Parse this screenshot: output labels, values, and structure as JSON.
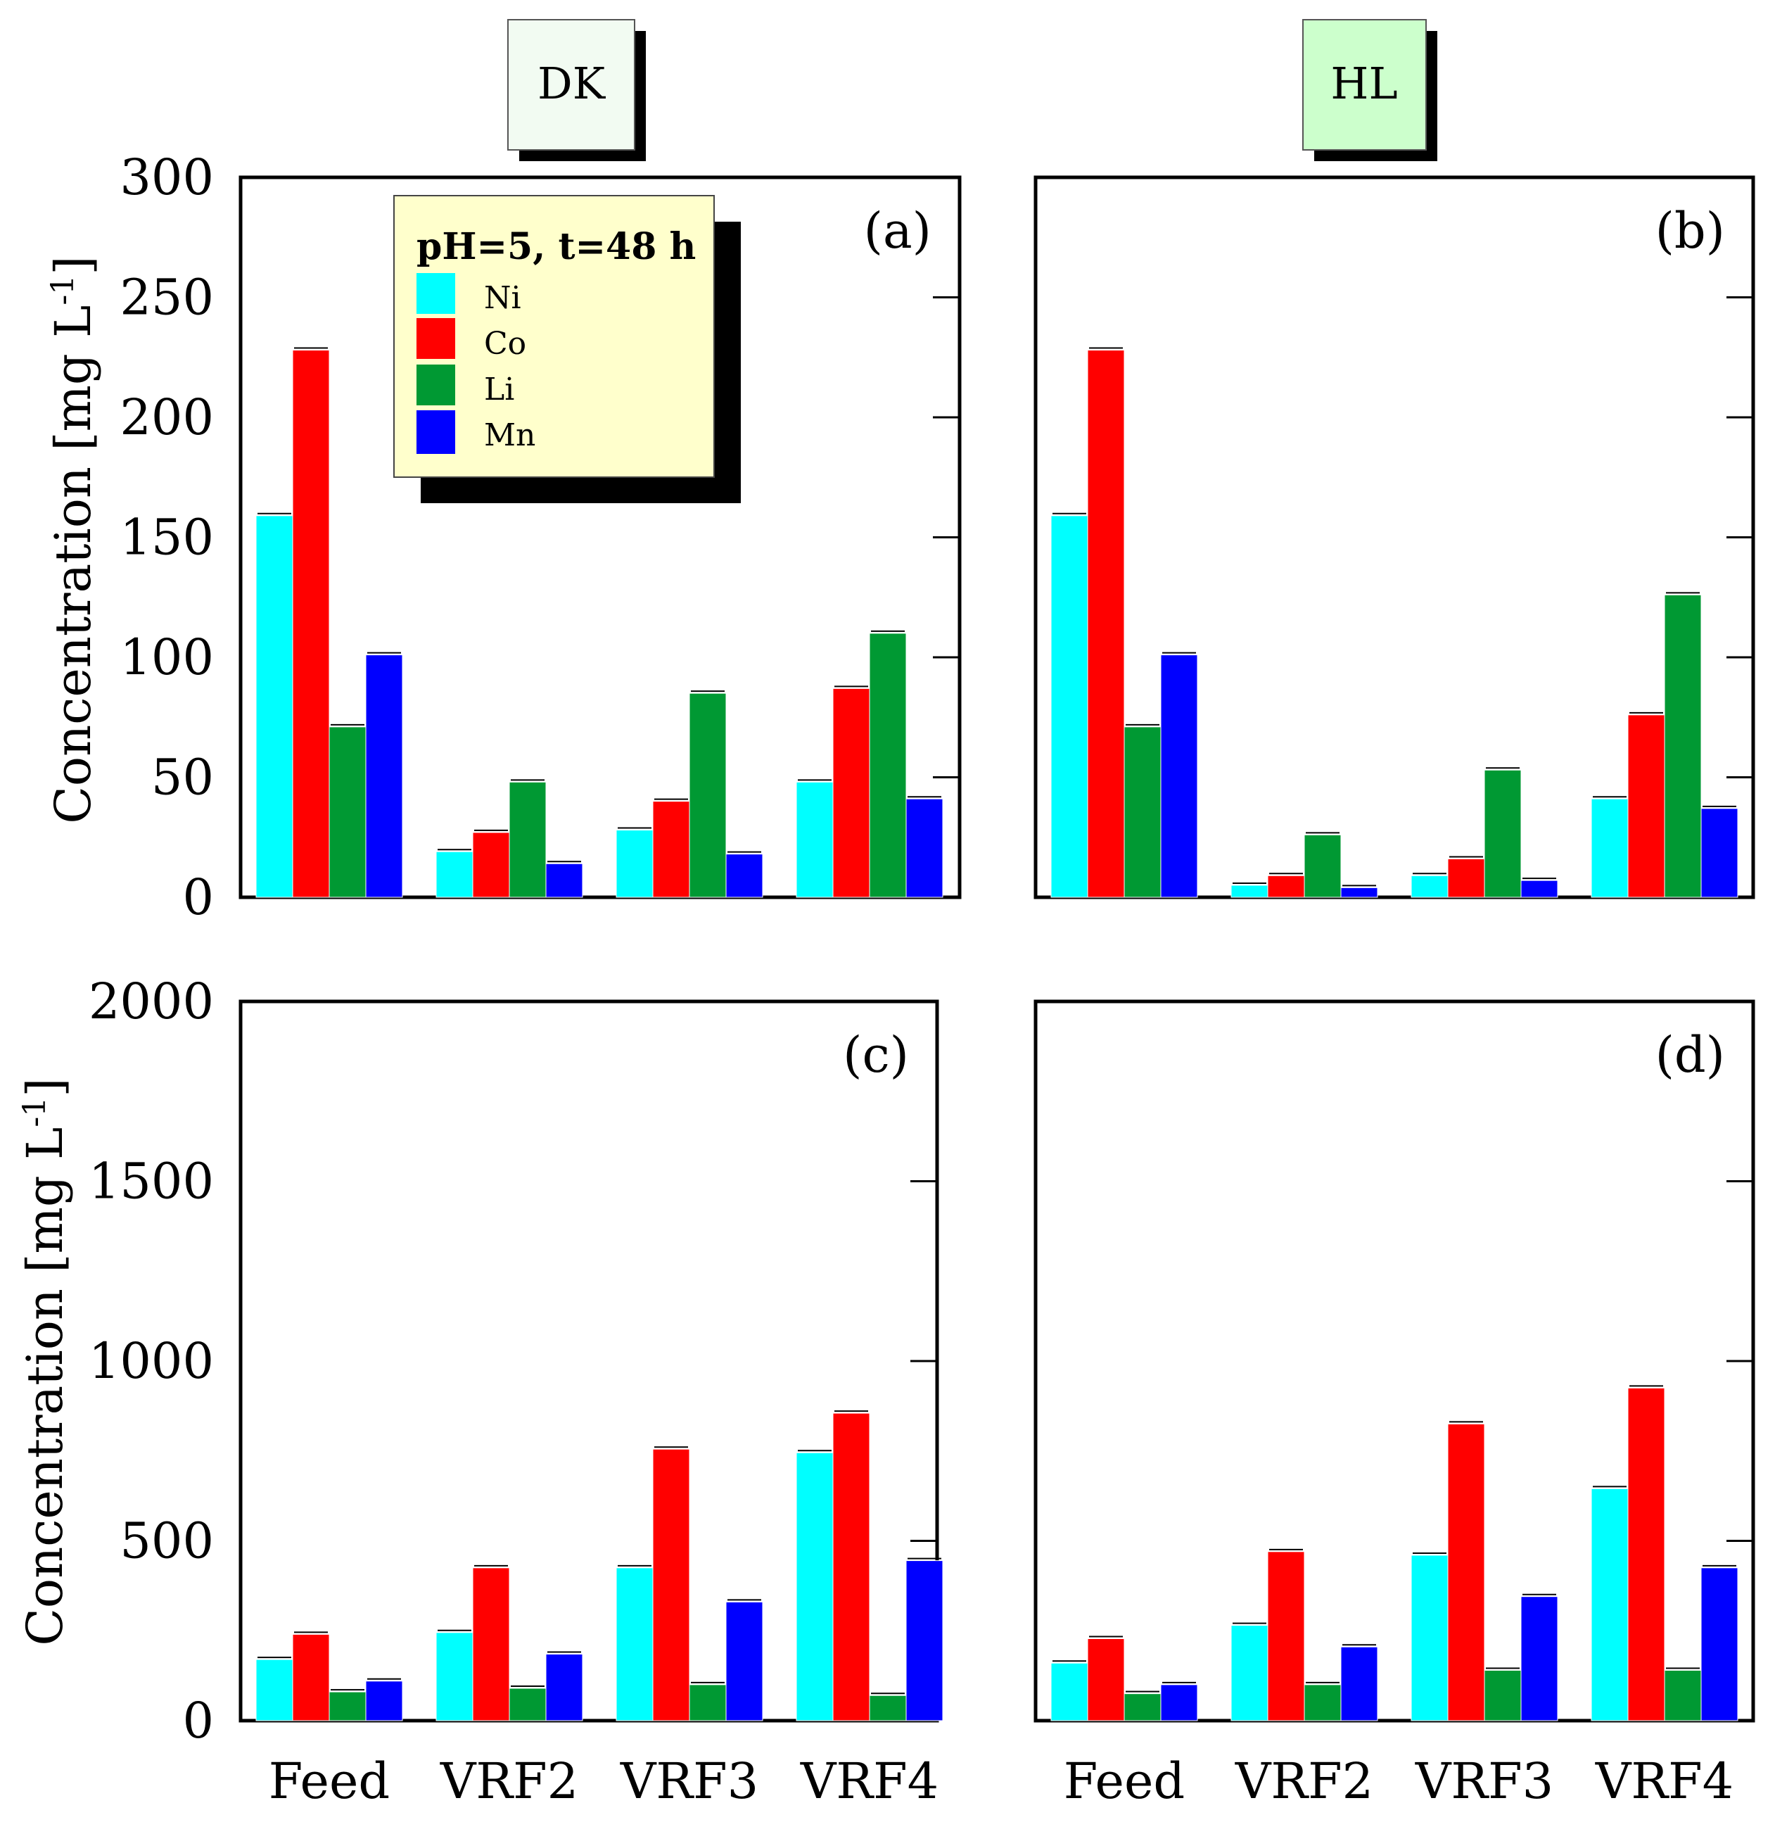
{
  "figure": {
    "column_titles": [
      "DK",
      "HL"
    ],
    "colors": {
      "Ni": "#00ffff",
      "Co": "#ff0000",
      "Li": "#009933",
      "Mn": "#0000ff",
      "legend_bg": "#ffffcc",
      "dk_box_bg": "#f2fbf2",
      "hl_box_bg": "#ccffcc"
    },
    "legend": {
      "title": "pH=5, t=48 h",
      "entries": [
        "Ni",
        "Co",
        "Li",
        "Mn"
      ]
    },
    "ylabel_top": "Concentration [mg L",
    "ylabel_bottom": "Concentration [mg L",
    "ylabel_sup": "-1",
    "ylabel_close": "]"
  },
  "chart_data": [
    {
      "type": "bar",
      "panel": "(a)",
      "column": "DK",
      "categories": [
        "Feed",
        "VRF2",
        "VRF3",
        "VRF4"
      ],
      "series": [
        {
          "name": "Ni",
          "values": [
            159,
            19,
            28,
            48
          ]
        },
        {
          "name": "Co",
          "values": [
            228,
            27,
            40,
            87
          ]
        },
        {
          "name": "Li",
          "values": [
            71,
            48,
            85,
            110
          ]
        },
        {
          "name": "Mn",
          "values": [
            101,
            14,
            18,
            41
          ]
        }
      ],
      "ylim": [
        0,
        300
      ],
      "yticks": [
        0,
        50,
        100,
        150,
        200,
        250,
        300
      ],
      "ylabel": "Concentration [mg L-1]"
    },
    {
      "type": "bar",
      "panel": "(b)",
      "column": "HL",
      "categories": [
        "Feed",
        "VRF2",
        "VRF3",
        "VRF4"
      ],
      "series": [
        {
          "name": "Ni",
          "values": [
            159,
            5,
            9,
            41
          ]
        },
        {
          "name": "Co",
          "values": [
            228,
            9,
            16,
            76
          ]
        },
        {
          "name": "Li",
          "values": [
            71,
            26,
            53,
            126
          ]
        },
        {
          "name": "Mn",
          "values": [
            101,
            4,
            7,
            37
          ]
        }
      ],
      "ylim": [
        0,
        300
      ],
      "yticks": [
        0,
        50,
        100,
        150,
        200,
        250,
        300
      ]
    },
    {
      "type": "bar",
      "panel": "(c)",
      "column": "DK",
      "categories": [
        "Feed",
        "VRF2",
        "VRF3",
        "VRF4"
      ],
      "series": [
        {
          "name": "Ni",
          "values": [
            170,
            245,
            425,
            745
          ]
        },
        {
          "name": "Co",
          "values": [
            240,
            425,
            755,
            855
          ]
        },
        {
          "name": "Li",
          "values": [
            80,
            90,
            100,
            70
          ]
        },
        {
          "name": "Mn",
          "values": [
            110,
            185,
            330,
            445
          ]
        }
      ],
      "ylim": [
        0,
        2000
      ],
      "yticks": [
        0,
        500,
        1000,
        1500,
        2000
      ],
      "ylabel": "Concentration [mg L-1]"
    },
    {
      "type": "bar",
      "panel": "(d)",
      "column": "HL",
      "categories": [
        "Feed",
        "VRF2",
        "VRF3",
        "VRF4"
      ],
      "series": [
        {
          "name": "Ni",
          "values": [
            160,
            265,
            460,
            645
          ]
        },
        {
          "name": "Co",
          "values": [
            228,
            470,
            825,
            925
          ]
        },
        {
          "name": "Li",
          "values": [
            75,
            100,
            140,
            140
          ]
        },
        {
          "name": "Mn",
          "values": [
            100,
            205,
            345,
            425
          ]
        }
      ],
      "ylim": [
        0,
        2000
      ],
      "yticks": [
        0,
        500,
        1000,
        1500,
        2000
      ]
    }
  ]
}
